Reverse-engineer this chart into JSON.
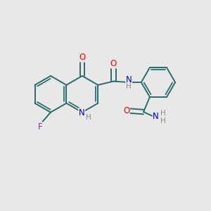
{
  "bg_color": "#e8e8e8",
  "bond_color": "#2a6b6b",
  "atom_colors": {
    "O": "#ff0000",
    "N": "#0000cc",
    "F": "#cc00cc",
    "H": "#888888",
    "C": "#2a6b6b"
  },
  "figsize": [
    3.0,
    3.0
  ],
  "dpi": 100,
  "lw": 1.4,
  "fs": 8.5,
  "fs_small": 7.5
}
